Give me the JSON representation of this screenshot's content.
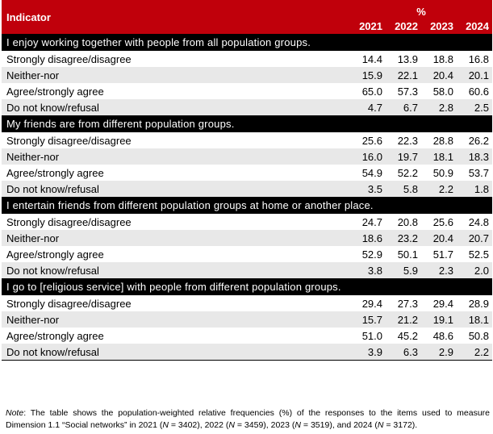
{
  "header": {
    "indicator_label": "Indicator",
    "unit_label": "%",
    "years": [
      "2021",
      "2022",
      "2023",
      "2024"
    ]
  },
  "sections": [
    {
      "title": "I enjoy working together with people from all population groups.",
      "rows": [
        {
          "label": "Strongly disagree/disagree",
          "values": [
            "14.4",
            "13.9",
            "18.8",
            "16.8"
          ]
        },
        {
          "label": "Neither-nor",
          "values": [
            "15.9",
            "22.1",
            "20.4",
            "20.1"
          ]
        },
        {
          "label": "Agree/strongly agree",
          "values": [
            "65.0",
            "57.3",
            "58.0",
            "60.6"
          ]
        },
        {
          "label": "Do not know/refusal",
          "values": [
            "4.7",
            "6.7",
            "2.8",
            "2.5"
          ]
        }
      ]
    },
    {
      "title": "My friends are from different population groups.",
      "rows": [
        {
          "label": "Strongly disagree/disagree",
          "values": [
            "25.6",
            "22.3",
            "28.8",
            "26.2"
          ]
        },
        {
          "label": "Neither-nor",
          "values": [
            "16.0",
            "19.7",
            "18.1",
            "18.3"
          ]
        },
        {
          "label": "Agree/strongly agree",
          "values": [
            "54.9",
            "52.2",
            "50.9",
            "53.7"
          ]
        },
        {
          "label": "Do not know/refusal",
          "values": [
            "3.5",
            "5.8",
            "2.2",
            "1.8"
          ]
        }
      ]
    },
    {
      "title": "I entertain friends from different population groups at home or another place.",
      "rows": [
        {
          "label": "Strongly disagree/disagree",
          "values": [
            "24.7",
            "20.8",
            "25.6",
            "24.8"
          ]
        },
        {
          "label": "Neither-nor",
          "values": [
            "18.6",
            "23.2",
            "20.4",
            "20.7"
          ]
        },
        {
          "label": "Agree/strongly agree",
          "values": [
            "52.9",
            "50.1",
            "51.7",
            "52.5"
          ]
        },
        {
          "label": "Do not know/refusal",
          "values": [
            "3.8",
            "5.9",
            "2.3",
            "2.0"
          ]
        }
      ]
    },
    {
      "title": "I go to [religious service] with people from different population groups.",
      "rows": [
        {
          "label": "Strongly disagree/disagree",
          "values": [
            "29.4",
            "27.3",
            "29.4",
            "28.9"
          ]
        },
        {
          "label": "Neither-nor",
          "values": [
            "15.7",
            "21.2",
            "19.1",
            "18.1"
          ]
        },
        {
          "label": "Agree/strongly agree",
          "values": [
            "51.0",
            "45.2",
            "48.6",
            "50.8"
          ]
        },
        {
          "label": "Do not know/refusal",
          "values": [
            "3.9",
            "6.3",
            "2.9",
            "2.2"
          ]
        }
      ]
    }
  ],
  "note": {
    "prefix": "Note",
    "text_1": ": The table shows the population-weighted relative frequencies (%) of the responses to the items used to measure Dimension 1.1 “Social networks” in 2021 (",
    "n_symbol": "N",
    "text_2": " = 3402), 2022 (",
    "text_3": " = 3459), 2023 (",
    "text_4": " = 3519), and 2024 (",
    "text_5": " = 3172)."
  },
  "colors": {
    "header_bg": "#c0000b",
    "section_bg": "#000000",
    "alt_row_bg": "#e8e8e8"
  }
}
